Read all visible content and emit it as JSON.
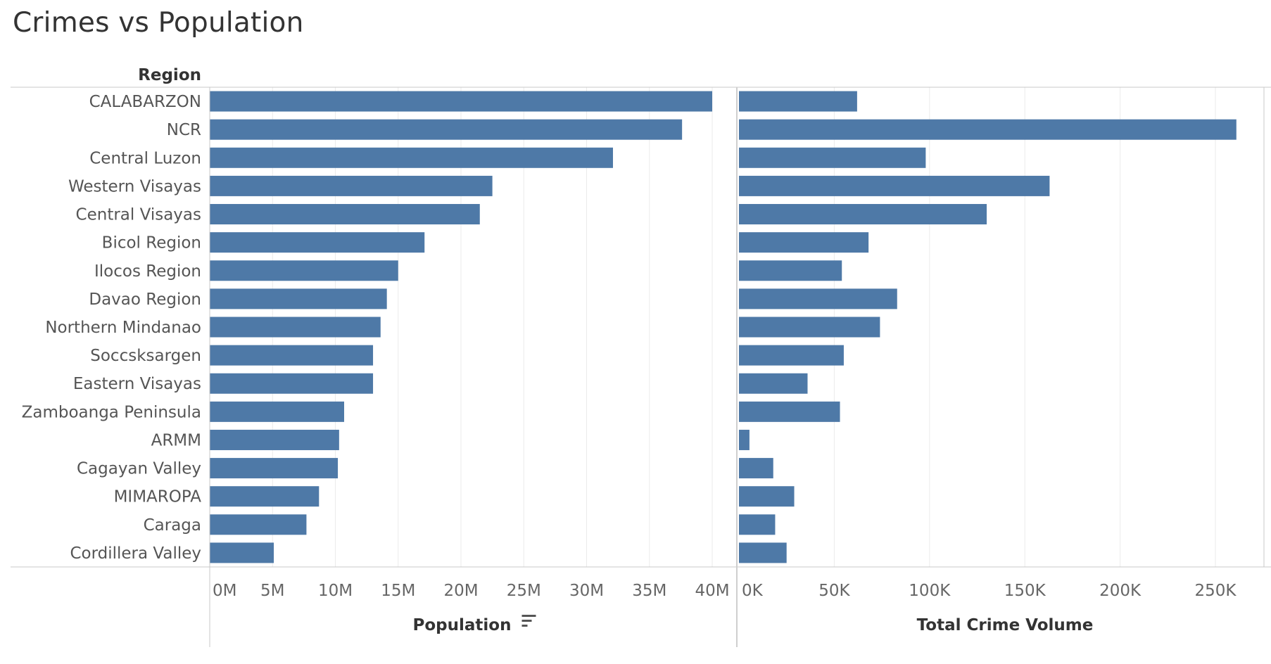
{
  "title": "Crimes vs Population",
  "colors": {
    "bar": "#4e79a7",
    "gridline": "#ebebeb",
    "axis_line": "#c8c8c8",
    "divider": "#cfcfcf"
  },
  "chart_data": {
    "type": "bar",
    "orientation": "horizontal",
    "row_header": "Region",
    "categories": [
      "CALABARZON",
      "NCR",
      "Central Luzon",
      "Western Visayas",
      "Central Visayas",
      "Bicol Region",
      "Ilocos Region",
      "Davao Region",
      "Northern Mindanao",
      "Soccsksargen",
      "Eastern Visayas",
      "Zamboanga  Peninsula",
      "ARMM",
      "Cagayan Valley",
      "MIMAROPA",
      "Caraga",
      "Cordillera Valley"
    ],
    "panels": [
      {
        "id": "population",
        "xlabel": "Population",
        "sorted_indicator": "sort-descending-icon",
        "xlim": [
          0,
          42000000
        ],
        "ticks": [
          0,
          5000000,
          10000000,
          15000000,
          20000000,
          25000000,
          30000000,
          35000000,
          40000000
        ],
        "tick_labels": [
          "0M",
          "5M",
          "10M",
          "15M",
          "20M",
          "25M",
          "30M",
          "35M",
          "40M"
        ],
        "values": [
          40000000,
          37600000,
          32100000,
          22500000,
          21500000,
          17100000,
          15000000,
          14100000,
          13600000,
          13000000,
          13000000,
          10700000,
          10300000,
          10200000,
          8700000,
          7700000,
          5100000
        ]
      },
      {
        "id": "crime",
        "xlabel": "Total Crime Volume",
        "xlim": [
          0,
          274000
        ],
        "ticks": [
          0,
          50000,
          100000,
          150000,
          200000,
          250000
        ],
        "tick_labels": [
          "0K",
          "50K",
          "100K",
          "150K",
          "200K",
          "250K"
        ],
        "values": [
          62000,
          261000,
          98000,
          163000,
          130000,
          68000,
          54000,
          83000,
          74000,
          55000,
          36000,
          53000,
          5500,
          18000,
          29000,
          19000,
          25000
        ]
      }
    ],
    "grid": true,
    "legend": "none"
  }
}
